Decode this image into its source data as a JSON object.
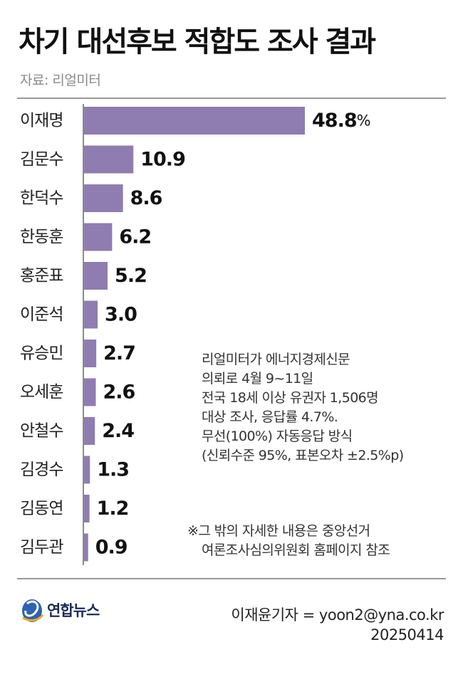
{
  "title": "차기 대선후보 적합도 조사 결과",
  "source": "자료: 리얼미터",
  "chart_data": {
    "type": "bar",
    "orientation": "horizontal",
    "title": "차기 대선후보 적합도 조사 결과",
    "unit": "%",
    "categories": [
      "이재명",
      "김문수",
      "한덕수",
      "한동훈",
      "홍준표",
      "이준석",
      "유승민",
      "오세훈",
      "안철수",
      "김경수",
      "김동연",
      "김두관"
    ],
    "values": [
      48.8,
      10.9,
      8.6,
      6.2,
      5.2,
      3.0,
      2.7,
      2.6,
      2.4,
      1.3,
      1.2,
      0.9
    ],
    "labels": [
      "48.8",
      "10.9",
      "8.6",
      "6.2",
      "5.2",
      "3.0",
      "2.7",
      "2.6",
      "2.4",
      "1.3",
      "1.2",
      "0.9"
    ],
    "bar_color": "#8f7cb0"
  },
  "survey_note": [
    "리얼미터가 에너지경제신문",
    "의뢰로 4월 9~11일",
    "전국 18세 이상 유권자 1,506명",
    "대상 조사, 응답률 4.7%.",
    "무선(100%) 자동응답 방식",
    "(신뢰수준 95%, 표본오차 ±2.5%p)"
  ],
  "footnote": [
    "※그 밖의 자세한 내용은 중앙선거",
    "여론조사심의위원회 홈페이지 참조"
  ],
  "logo": {
    "text": "연합뉴스",
    "icon": "yonhap-logo-icon"
  },
  "credit": {
    "reporter": "이재윤기자 = yoon2@yna.co.kr",
    "date": "20250414"
  }
}
